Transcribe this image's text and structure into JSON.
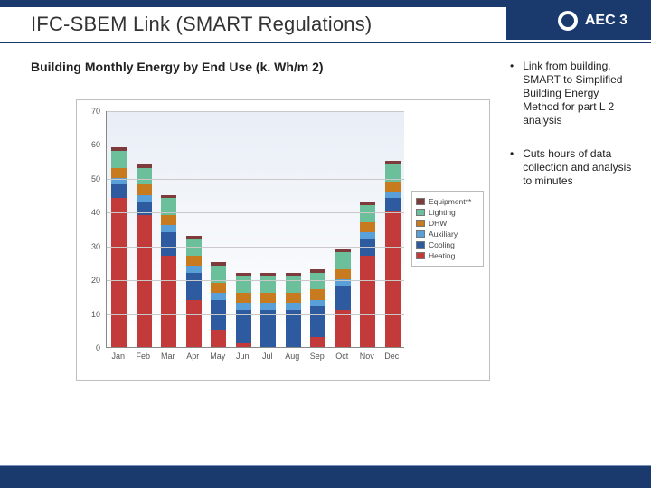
{
  "header": {
    "title": "IFC-SBEM Link (SMART Regulations)",
    "logo_text": "AEC 3",
    "brand_color": "#1a3a6e"
  },
  "subtitle": "Building Monthly Energy by End Use (k. Wh/m 2)",
  "bullets": [
    "Link from building. SMART to Simplified Building Energy Method for part L 2 analysis",
    "Cuts hours of data collection and analysis to minutes"
  ],
  "chart": {
    "type": "stacked-bar",
    "background_gradient": [
      "#e9eef6",
      "#ffffff"
    ],
    "border_color": "#bfbfbf",
    "grid_color": "#c9c9c9",
    "axis_color": "#888888",
    "ylim": [
      0,
      70
    ],
    "ytick_step": 10,
    "label_fontsize": 9,
    "categories": [
      "Jan",
      "Feb",
      "Mar",
      "Apr",
      "May",
      "Jun",
      "Jul",
      "Aug",
      "Sep",
      "Oct",
      "Nov",
      "Dec"
    ],
    "series": [
      {
        "key": "heating",
        "label": "Heating",
        "color": "#c23a3a"
      },
      {
        "key": "cooling",
        "label": "Cooling",
        "color": "#2e5aa0"
      },
      {
        "key": "auxiliary",
        "label": "Auxiliary",
        "color": "#5aa0d8"
      },
      {
        "key": "dhw",
        "label": "DHW",
        "color": "#c77a1e"
      },
      {
        "key": "lighting",
        "label": "Lighting",
        "color": "#6bbf9a"
      },
      {
        "key": "equipment",
        "label": "Equipment**",
        "color": "#7d3b3b"
      }
    ],
    "legend_order": [
      "equipment",
      "lighting",
      "dhw",
      "auxiliary",
      "cooling",
      "heating"
    ],
    "data": {
      "heating": [
        44,
        39,
        27,
        14,
        5,
        1,
        0,
        0,
        3,
        11,
        27,
        40
      ],
      "cooling": [
        4,
        4,
        7,
        8,
        9,
        10,
        11,
        11,
        9,
        7,
        5,
        4
      ],
      "auxiliary": [
        2,
        2,
        2,
        2,
        2,
        2,
        2,
        2,
        2,
        2,
        2,
        2
      ],
      "dhw": [
        3,
        3,
        3,
        3,
        3,
        3,
        3,
        3,
        3,
        3,
        3,
        3
      ],
      "lighting": [
        5,
        5,
        5,
        5,
        5,
        5,
        5,
        5,
        5,
        5,
        5,
        5
      ],
      "equipment": [
        1,
        1,
        1,
        1,
        1,
        1,
        1,
        1,
        1,
        1,
        1,
        1
      ]
    },
    "bar_width": 0.62
  },
  "footer": {
    "color": "#1a3a6e"
  }
}
